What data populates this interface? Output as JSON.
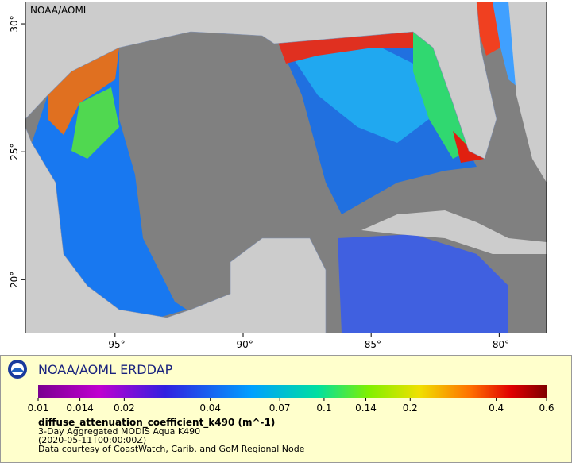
{
  "map": {
    "corner_label": "NOAA/AOML",
    "xlim": [
      -98.5,
      -78.15
    ],
    "ylim": [
      17.9,
      30.87
    ],
    "xticks": [
      {
        "value": -95,
        "label": "-95°"
      },
      {
        "value": -90,
        "label": "-90°"
      },
      {
        "value": -85,
        "label": "-85°"
      },
      {
        "value": -80,
        "label": "-80°"
      }
    ],
    "yticks": [
      {
        "value": 20,
        "label": "20°"
      },
      {
        "value": 25,
        "label": "25°"
      },
      {
        "value": 30,
        "label": "30°"
      }
    ]
  },
  "legend": {
    "title": "NOAA/AOML ERDDAP",
    "clim": [
      0.01,
      0.6
    ],
    "log_scale": true,
    "ticks": [
      0.01,
      0.014,
      0.02,
      0.04,
      0.07,
      0.1,
      0.14,
      0.2,
      0.4,
      0.6
    ],
    "variable": "diffuse_attenuation_coefficient_k490 (m^-1)",
    "lines": [
      "3-Day Aggregated MODIS Aqua K490",
      "(2020-05-11T00:00:00Z)",
      "Data courtesy of CoastWatch, Carib. and GoM Regional Node"
    ]
  }
}
